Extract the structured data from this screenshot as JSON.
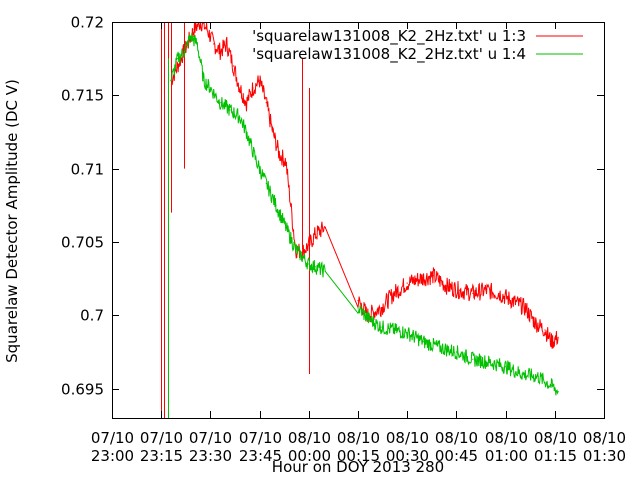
{
  "chart_data": {
    "type": "line",
    "title": "",
    "xlabel": "Hour on DOY 2013 280",
    "ylabel": "Squarelaw Detector Amplitude (DC V)",
    "xlim": [
      "07/10 23:00",
      "08/10 01:30"
    ],
    "ylim": [
      0.693,
      0.72
    ],
    "x_ticks": [
      {
        "date": "07/10",
        "time": "23:00"
      },
      {
        "date": "07/10",
        "time": "23:15"
      },
      {
        "date": "07/10",
        "time": "23:30"
      },
      {
        "date": "07/10",
        "time": "23:45"
      },
      {
        "date": "08/10",
        "time": "00:00"
      },
      {
        "date": "08/10",
        "time": "00:15"
      },
      {
        "date": "08/10",
        "time": "00:30"
      },
      {
        "date": "08/10",
        "time": "00:45"
      },
      {
        "date": "08/10",
        "time": "01:00"
      },
      {
        "date": "08/10",
        "time": "01:15"
      },
      {
        "date": "08/10",
        "time": "01:30"
      }
    ],
    "y_ticks": [
      "0.695",
      "0.7",
      "0.705",
      "0.71",
      "0.715",
      "0.72"
    ],
    "legend_position": "top-right",
    "grid": false,
    "series": [
      {
        "name": "'squarelaw131008_K2_2Hz.txt' u 1:3",
        "color": "#ff0000",
        "noise": 0.0006,
        "x": [
          "07/10 23:18",
          "07/10 23:20",
          "07/10 23:22",
          "07/10 23:25",
          "07/10 23:27",
          "07/10 23:29",
          "07/10 23:31",
          "07/10 23:33",
          "07/10 23:35",
          "07/10 23:37",
          "07/10 23:39",
          "07/10 23:41",
          "07/10 23:43",
          "07/10 23:45",
          "07/10 23:47",
          "07/10 23:49",
          "07/10 23:51",
          "07/10 23:53",
          "07/10 23:56",
          "07/10 23:58",
          "08/10 00:00",
          "08/10 00:02",
          "08/10 00:05",
          "08/10 00:15",
          "08/10 00:18",
          "08/10 00:22",
          "08/10 00:26",
          "08/10 00:30",
          "08/10 00:34",
          "08/10 00:38",
          "08/10 00:42",
          "08/10 00:46",
          "08/10 00:50",
          "08/10 00:54",
          "08/10 00:58",
          "08/10 01:02",
          "08/10 01:06",
          "08/10 01:09",
          "08/10 01:12",
          "08/10 01:14",
          "08/10 01:16"
        ],
        "y": [
          0.716,
          0.717,
          0.718,
          0.7195,
          0.72,
          0.7195,
          0.7185,
          0.718,
          0.7185,
          0.717,
          0.7155,
          0.7145,
          0.7155,
          0.716,
          0.7145,
          0.7125,
          0.711,
          0.7105,
          0.7045,
          0.7043,
          0.7048,
          0.7055,
          0.706,
          0.701,
          0.7,
          0.7005,
          0.7015,
          0.7022,
          0.7025,
          0.7027,
          0.702,
          0.7017,
          0.7015,
          0.7017,
          0.7015,
          0.701,
          0.7005,
          0.6995,
          0.699,
          0.6982,
          0.6985
        ],
        "spikes": [
          {
            "x": "07/10 23:15",
            "from": 0.693,
            "to": 0.72
          },
          {
            "x": "07/10 23:16",
            "from": 0.693,
            "to": 0.72
          },
          {
            "x": "07/10 23:17",
            "from": 0.6935,
            "to": 0.72
          },
          {
            "x": "07/10 23:18",
            "from": 0.707,
            "to": 0.72
          },
          {
            "x": "07/10 23:22",
            "from": 0.71,
            "to": 0.72
          },
          {
            "x": "07/10 23:58",
            "from": 0.7045,
            "to": 0.7175
          },
          {
            "x": "08/10 00:00",
            "from": 0.696,
            "to": 0.7155
          }
        ]
      },
      {
        "name": "'squarelaw131008_K2_2Hz.txt' u 1:4",
        "color": "#00c000",
        "noise": 0.0005,
        "x": [
          "07/10 23:18",
          "07/10 23:20",
          "07/10 23:22",
          "07/10 23:24",
          "07/10 23:26",
          "07/10 23:28",
          "07/10 23:30",
          "07/10 23:33",
          "07/10 23:36",
          "07/10 23:39",
          "07/10 23:41",
          "07/10 23:44",
          "07/10 23:47",
          "07/10 23:50",
          "07/10 23:53",
          "07/10 23:56",
          "07/10 23:58",
          "08/10 00:00",
          "08/10 00:02",
          "08/10 00:05",
          "08/10 00:15",
          "08/10 00:18",
          "08/10 00:22",
          "08/10 00:26",
          "08/10 00:30",
          "08/10 00:35",
          "08/10 00:40",
          "08/10 00:45",
          "08/10 00:50",
          "08/10 00:55",
          "08/10 01:00",
          "08/10 01:05",
          "08/10 01:10",
          "08/10 01:14",
          "08/10 01:16"
        ],
        "y": [
          0.716,
          0.7175,
          0.718,
          0.719,
          0.7185,
          0.716,
          0.7155,
          0.7145,
          0.714,
          0.7135,
          0.7125,
          0.7105,
          0.709,
          0.7075,
          0.706,
          0.7045,
          0.704,
          0.7035,
          0.7033,
          0.703,
          0.7005,
          0.6998,
          0.6992,
          0.699,
          0.6988,
          0.6982,
          0.6978,
          0.6975,
          0.697,
          0.6968,
          0.6965,
          0.696,
          0.6958,
          0.6952,
          0.6948
        ],
        "spikes": [
          {
            "x": "07/10 23:17",
            "from": 0.693,
            "to": 0.7175
          }
        ]
      }
    ]
  }
}
